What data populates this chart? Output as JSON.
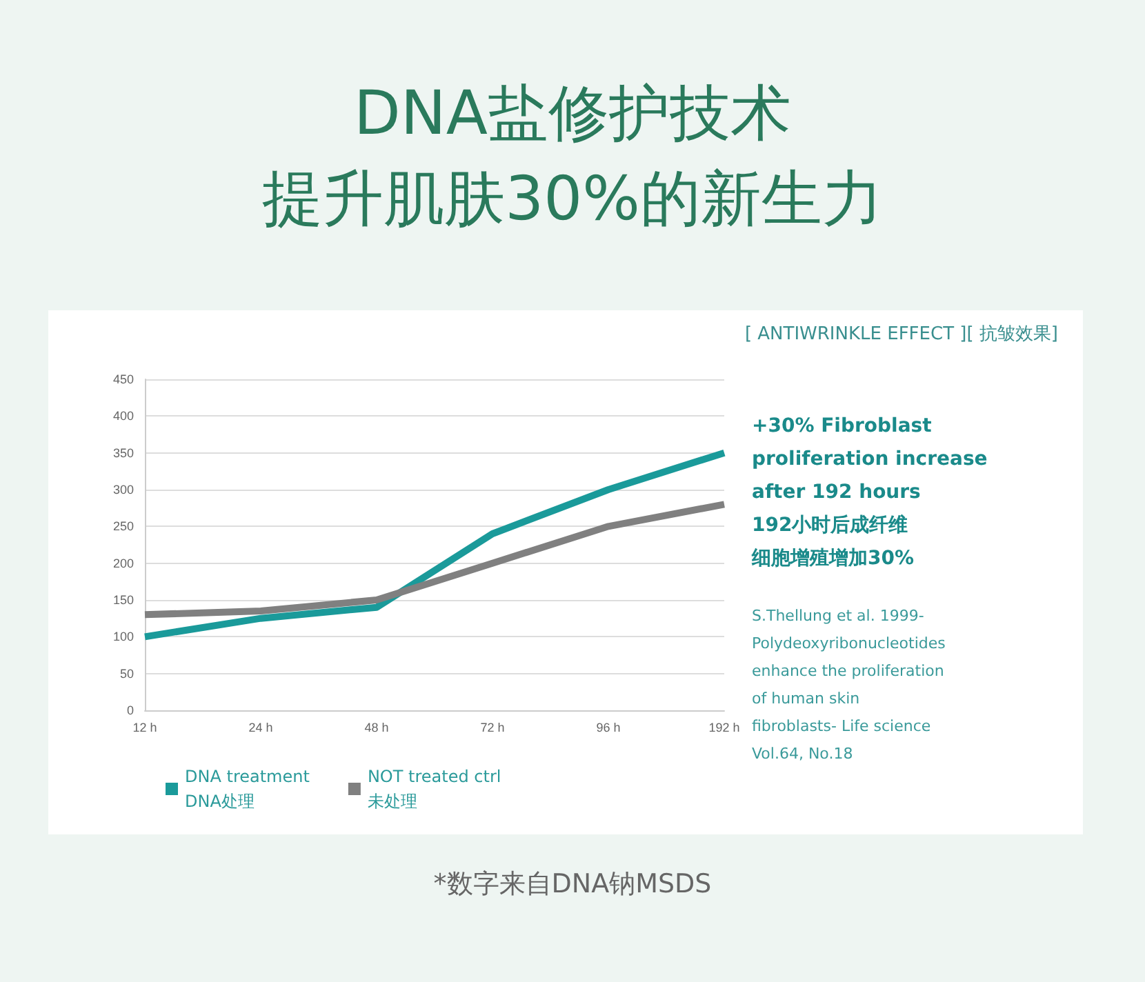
{
  "chart_data": {
    "type": "line",
    "title": "DNA盐修护技术",
    "subtitle": "[ ANTIWRINKLE EFFECT ][ 抗皱效果]",
    "categories": [
      "12 h",
      "24 h",
      "48 h",
      "72 h",
      "96 h",
      "192 h"
    ],
    "series": [
      {
        "name": "DNA treatment\nDNA处理",
        "color": "#1a9a9a",
        "values": [
          100,
          125,
          140,
          240,
          300,
          350
        ]
      },
      {
        "name": "NOT treated ctrl\n未处理",
        "color": "#808080",
        "values": [
          130,
          135,
          150,
          200,
          250,
          280
        ]
      }
    ],
    "ylim": [
      0,
      450
    ],
    "yticks": [
      0,
      50,
      100,
      150,
      200,
      250,
      300,
      350,
      400,
      450
    ],
    "grid": "y",
    "legend": "bottom left",
    "marker": "none",
    "line_style": "solid",
    "annotations": [
      "提升肌肤30%的新生力",
      "+30% Fibroblast\nproliferation increase\nafter 192 hours",
      "192小时后成纤维细胞增殖增加30%",
      "S.Thellung et al. 1999-\nPolydeoxyribonucleotides\nenhance the proliferation\nof human skin\nfibroblasts- Life science\nVol.64, No.18",
      "*数字来自DNA钠MSDS"
    ]
  }
}
